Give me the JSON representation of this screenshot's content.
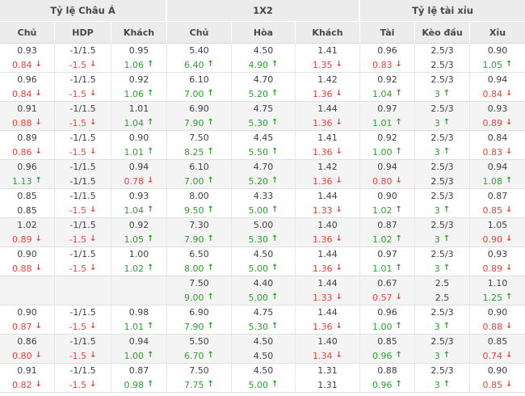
{
  "colors": {
    "up": "#2f9e2f",
    "down": "#ee4237",
    "header_bg": "#ececec",
    "shaded_row_bg": "#f4f4f4",
    "border": "#e0e0e0"
  },
  "icons": {
    "up_arrow": "↑",
    "down_arrow": "↓"
  },
  "table": {
    "groups": [
      {
        "label": "Tỷ lệ Châu Á",
        "columns": [
          "Chủ",
          "HDP",
          "Khách"
        ]
      },
      {
        "label": "1X2",
        "columns": [
          "Chủ",
          "Hòa",
          "Khách"
        ]
      },
      {
        "label": "Tỷ lệ tài xỉu",
        "columns": [
          "Tài",
          "Kèo đầu",
          "Xỉu"
        ]
      }
    ],
    "rows": [
      {
        "shaded": false,
        "line1": [
          "0.93",
          "-1/1.5",
          "0.95",
          "5.40",
          "4.50",
          "1.41",
          "0.96",
          "2.5/3",
          "0.90"
        ],
        "line2": [
          {
            "v": "0.84",
            "t": "down"
          },
          {
            "v": "-1.5",
            "t": "down"
          },
          {
            "v": "1.06",
            "t": "up"
          },
          {
            "v": "6.40",
            "t": "up"
          },
          {
            "v": "4.90",
            "t": "up"
          },
          {
            "v": "1.35",
            "t": "down"
          },
          {
            "v": "0.83",
            "t": "down"
          },
          {
            "v": "2.5/3"
          },
          {
            "v": "1.05",
            "t": "up"
          }
        ]
      },
      {
        "shaded": false,
        "line1": [
          "0.96",
          "-1/1.5",
          "0.92",
          "6.10",
          "4.70",
          "1.42",
          "0.92",
          "2.5/3",
          "0.94"
        ],
        "line2": [
          {
            "v": "0.84",
            "t": "down"
          },
          {
            "v": "-1.5",
            "t": "down"
          },
          {
            "v": "1.06",
            "t": "up"
          },
          {
            "v": "7.00",
            "t": "up"
          },
          {
            "v": "5.20",
            "t": "up"
          },
          {
            "v": "1.36",
            "t": "down"
          },
          {
            "v": "1.04",
            "t": "up"
          },
          {
            "v": "3",
            "t": "up"
          },
          {
            "v": "0.84",
            "t": "down"
          }
        ]
      },
      {
        "shaded": true,
        "line1": [
          "0.91",
          "-1/1.5",
          "1.01",
          "6.90",
          "4.75",
          "1.44",
          "0.97",
          "2.5/3",
          "0.93"
        ],
        "line2": [
          {
            "v": "0.88",
            "t": "down"
          },
          {
            "v": "-1.5",
            "t": "down"
          },
          {
            "v": "1.04",
            "t": "up"
          },
          {
            "v": "7.90",
            "t": "up"
          },
          {
            "v": "5.30",
            "t": "up"
          },
          {
            "v": "1.36",
            "t": "down"
          },
          {
            "v": "1.01",
            "t": "up"
          },
          {
            "v": "3",
            "t": "up"
          },
          {
            "v": "0.89",
            "t": "down"
          }
        ]
      },
      {
        "shaded": false,
        "line1": [
          "0.89",
          "-1/1.5",
          "0.90",
          "7.50",
          "4.45",
          "1.41",
          "0.92",
          "2.5/3",
          "0.84"
        ],
        "line2": [
          {
            "v": "0.86",
            "t": "down"
          },
          {
            "v": "-1.5",
            "t": "down"
          },
          {
            "v": "1.01",
            "t": "up"
          },
          {
            "v": "8.25",
            "t": "up"
          },
          {
            "v": "5.50",
            "t": "up"
          },
          {
            "v": "1.36",
            "t": "down"
          },
          {
            "v": "1.00",
            "t": "up"
          },
          {
            "v": "3",
            "t": "up"
          },
          {
            "v": "0.83",
            "t": "down"
          }
        ]
      },
      {
        "shaded": true,
        "line1": [
          "0.96",
          "-1/1.5",
          "0.94",
          "6.10",
          "4.70",
          "1.42",
          "0.94",
          "2.5/3",
          "0.94"
        ],
        "line2": [
          {
            "v": "1.13",
            "t": "up"
          },
          {
            "v": "-1/1.5"
          },
          {
            "v": "0.78",
            "t": "down"
          },
          {
            "v": "7.00",
            "t": "up"
          },
          {
            "v": "5.20",
            "t": "up"
          },
          {
            "v": "1.36",
            "t": "down"
          },
          {
            "v": "0.80",
            "t": "down"
          },
          {
            "v": "2.5/3"
          },
          {
            "v": "1.08",
            "t": "up"
          }
        ]
      },
      {
        "shaded": false,
        "line1": [
          "0.85",
          "-1/1.5",
          "0.93",
          "8.00",
          "4.33",
          "1.44",
          "0.90",
          "2.5/3",
          "0.87"
        ],
        "line2": [
          {
            "v": "0.85"
          },
          {
            "v": "-1.5",
            "t": "down"
          },
          {
            "v": "1.04",
            "t": "up"
          },
          {
            "v": "9.50",
            "t": "up"
          },
          {
            "v": "5.00",
            "t": "up"
          },
          {
            "v": "1.33",
            "t": "down"
          },
          {
            "v": "1.02",
            "t": "up"
          },
          {
            "v": "3",
            "t": "up"
          },
          {
            "v": "0.85",
            "t": "down"
          }
        ]
      },
      {
        "shaded": true,
        "line1": [
          "1.02",
          "-1/1.5",
          "0.92",
          "7.30",
          "5.00",
          "1.40",
          "0.87",
          "2.5/3",
          "1.05"
        ],
        "line2": [
          {
            "v": "0.89",
            "t": "down"
          },
          {
            "v": "-1.5",
            "t": "down"
          },
          {
            "v": "1.05",
            "t": "up"
          },
          {
            "v": "7.90",
            "t": "up"
          },
          {
            "v": "5.30",
            "t": "up"
          },
          {
            "v": "1.36",
            "t": "down"
          },
          {
            "v": "1.02",
            "t": "up"
          },
          {
            "v": "3",
            "t": "up"
          },
          {
            "v": "0.90",
            "t": "down"
          }
        ]
      },
      {
        "shaded": false,
        "line1": [
          "0.90",
          "-1/1.5",
          "1.00",
          "6.50",
          "4.50",
          "1.44",
          "0.97",
          "2.5/3",
          "0.93"
        ],
        "line2": [
          {
            "v": "0.88",
            "t": "down"
          },
          {
            "v": "-1.5",
            "t": "down"
          },
          {
            "v": "1.02",
            "t": "up"
          },
          {
            "v": "8.00",
            "t": "up"
          },
          {
            "v": "5.00",
            "t": "up"
          },
          {
            "v": "1.36",
            "t": "down"
          },
          {
            "v": "1.01",
            "t": "up"
          },
          {
            "v": "3",
            "t": "up"
          },
          {
            "v": "0.89",
            "t": "down"
          }
        ]
      },
      {
        "shaded": true,
        "line1": [
          "",
          "",
          "",
          "7.50",
          "4.40",
          "1.44",
          "0.67",
          "2.5",
          "1.10"
        ],
        "line2": [
          {
            "v": ""
          },
          {
            "v": ""
          },
          {
            "v": ""
          },
          {
            "v": "9.00",
            "t": "up"
          },
          {
            "v": "5.00",
            "t": "up"
          },
          {
            "v": "1.33",
            "t": "down"
          },
          {
            "v": "0.57",
            "t": "down"
          },
          {
            "v": "2.5"
          },
          {
            "v": "1.25",
            "t": "up"
          }
        ]
      },
      {
        "shaded": false,
        "line1": [
          "0.90",
          "-1/1.5",
          "0.98",
          "6.90",
          "4.75",
          "1.44",
          "0.96",
          "2.5/3",
          "0.90"
        ],
        "line2": [
          {
            "v": "0.87",
            "t": "down"
          },
          {
            "v": "-1.5",
            "t": "down"
          },
          {
            "v": "1.01",
            "t": "up"
          },
          {
            "v": "7.90",
            "t": "up"
          },
          {
            "v": "5.30",
            "t": "up"
          },
          {
            "v": "1.36",
            "t": "down"
          },
          {
            "v": "1.00",
            "t": "up"
          },
          {
            "v": "3",
            "t": "up"
          },
          {
            "v": "0.88",
            "t": "down"
          }
        ]
      },
      {
        "shaded": true,
        "line1": [
          "0.86",
          "-1/1.5",
          "0.94",
          "5.50",
          "4.50",
          "1.40",
          "0.85",
          "2.5/3",
          "0.85"
        ],
        "line2": [
          {
            "v": "0.80",
            "t": "down"
          },
          {
            "v": "-1.5",
            "t": "down"
          },
          {
            "v": "1.00",
            "t": "up"
          },
          {
            "v": "6.70",
            "t": "up"
          },
          {
            "v": "4.50"
          },
          {
            "v": "1.34",
            "t": "down"
          },
          {
            "v": "0.96",
            "t": "up"
          },
          {
            "v": "3",
            "t": "up"
          },
          {
            "v": "0.74",
            "t": "down"
          }
        ]
      },
      {
        "shaded": false,
        "line1": [
          "0.91",
          "-1/1.5",
          "0.87",
          "7.50",
          "4.50",
          "1.31",
          "0.88",
          "2.5/3",
          "0.90"
        ],
        "line2": [
          {
            "v": "0.82",
            "t": "down"
          },
          {
            "v": "-1.5",
            "t": "down"
          },
          {
            "v": "0.98",
            "t": "up"
          },
          {
            "v": "7.75",
            "t": "up"
          },
          {
            "v": "5.00",
            "t": "up"
          },
          {
            "v": "1.31"
          },
          {
            "v": "0.96",
            "t": "up"
          },
          {
            "v": "3",
            "t": "up"
          },
          {
            "v": "0.85",
            "t": "down"
          }
        ]
      }
    ]
  }
}
